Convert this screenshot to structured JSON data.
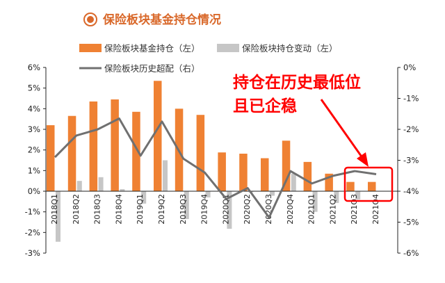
{
  "title": "保险板块基金持仓情况",
  "colors": {
    "title": "#d9682a",
    "bar_holding": "#ef8133",
    "bar_change": "#c6c6c6",
    "line_excess": "#707070",
    "annotation": "#ff0000"
  },
  "legend": {
    "holding": "保险板块基金持仓（左）",
    "change": "保险板块持仓变动（左）",
    "excess": "保险板块历史超配（右）"
  },
  "annotation": {
    "line1": "持仓在历史最低位",
    "line2": "且已企稳"
  },
  "chart_data": {
    "type": "bar",
    "categories": [
      "2018Q1",
      "2018Q2",
      "2018Q3",
      "2018Q4",
      "2019Q1",
      "2019Q2",
      "2019Q3",
      "2019Q4",
      "2020Q1",
      "2020Q2",
      "2020Q3",
      "2020Q4",
      "2021Q1",
      "2021Q2",
      "2021Q3",
      "2021Q4"
    ],
    "category_labels": [
      "2018Q1",
      "2018Q2",
      "2018Q3",
      "2018Q4",
      "2019Q1",
      "2019Q2",
      "2019Q3",
      "2019Q4",
      "2020Q1",
      "2020Q2",
      "2020Q3",
      "2020Q4",
      "2021Q1",
      "2021Q2",
      "2021Q3",
      "2021Q4"
    ],
    "series": [
      {
        "name": "保险板块基金持仓（左）",
        "type": "bar",
        "axis": "left",
        "values": [
          3.2,
          3.65,
          4.35,
          4.45,
          3.85,
          5.35,
          4.0,
          3.7,
          1.88,
          1.82,
          1.6,
          2.45,
          1.42,
          0.85,
          0.45,
          0.45
        ]
      },
      {
        "name": "保险板块持仓变动（左）",
        "type": "bar",
        "axis": "left",
        "values": [
          -2.45,
          0.5,
          0.68,
          0.1,
          -0.6,
          1.5,
          -1.35,
          -0.3,
          -1.82,
          -0.05,
          -0.22,
          0.85,
          -1.0,
          -0.57,
          -0.4,
          0.0
        ]
      },
      {
        "name": "保险板块历史超配（右）",
        "type": "line",
        "axis": "right",
        "values": [
          -2.9,
          -2.2,
          -2.0,
          -1.65,
          -2.85,
          -1.75,
          -2.95,
          -3.4,
          -4.25,
          -3.9,
          -4.85,
          -3.35,
          -3.75,
          -3.5,
          -3.35,
          -3.45
        ]
      }
    ],
    "y_left": {
      "range": [
        -3,
        6
      ],
      "ticks": [
        6,
        5,
        4,
        3,
        2,
        1,
        0,
        -1,
        -2,
        -3
      ],
      "tick_labels": [
        "6%",
        "5%",
        "4%",
        "3%",
        "2%",
        "1%",
        "0%",
        "-1%",
        "-2%",
        "-3%"
      ]
    },
    "y_right": {
      "range": [
        -6,
        0
      ],
      "ticks": [
        0,
        -1,
        -2,
        -3,
        -4,
        -5,
        -6
      ],
      "tick_labels": [
        "0%",
        "-1%",
        "-2%",
        "-3%",
        "-4%",
        "-5%",
        "-6%"
      ]
    },
    "grid": false,
    "legend_position": "top"
  }
}
